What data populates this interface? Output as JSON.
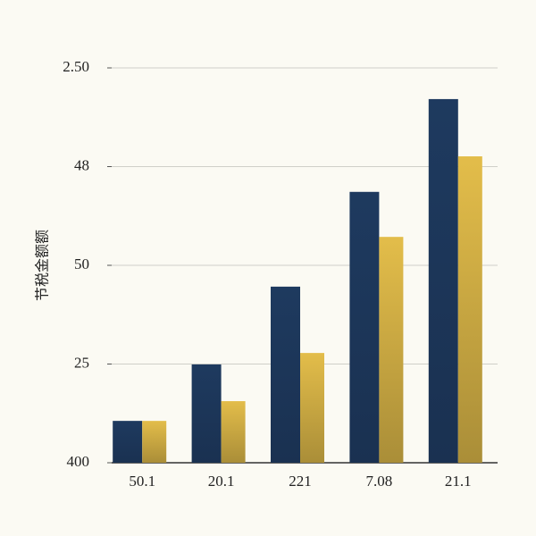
{
  "chart_data": {
    "type": "bar",
    "y_label": "节税金额额",
    "categories": [
      "50.1",
      "20.1",
      "221",
      "7.08",
      "21.1"
    ],
    "series": [
      {
        "color": "#1e3a5f",
        "values": [
          10.6,
          24.9,
          44.6,
          68.6,
          92.1
        ]
      },
      {
        "color": "#e3bd4a",
        "values": [
          10.6,
          15.6,
          27.8,
          57.2,
          77.6
        ]
      }
    ],
    "ylim": [
      0,
      100
    ],
    "yticks": [
      {
        "value": 0,
        "label": "400"
      },
      25,
      50,
      {
        "value": 75,
        "label": "48"
      },
      {
        "value": 100,
        "label": "2.50"
      }
    ],
    "grid": true
  }
}
